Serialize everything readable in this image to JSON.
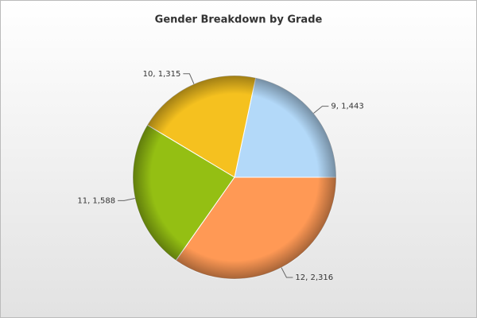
{
  "chart_data": {
    "type": "pie",
    "title": "Gender Breakdown by Grade",
    "values": [
      1443,
      1315,
      1588,
      2316
    ],
    "value_labels": [
      "9, 1,443",
      "10, 1,315",
      "11, 1,588",
      "12, 2,316"
    ],
    "colors": [
      "#b3d9f9",
      "#f5c11f",
      "#94bf13",
      "#ff9955"
    ]
  }
}
